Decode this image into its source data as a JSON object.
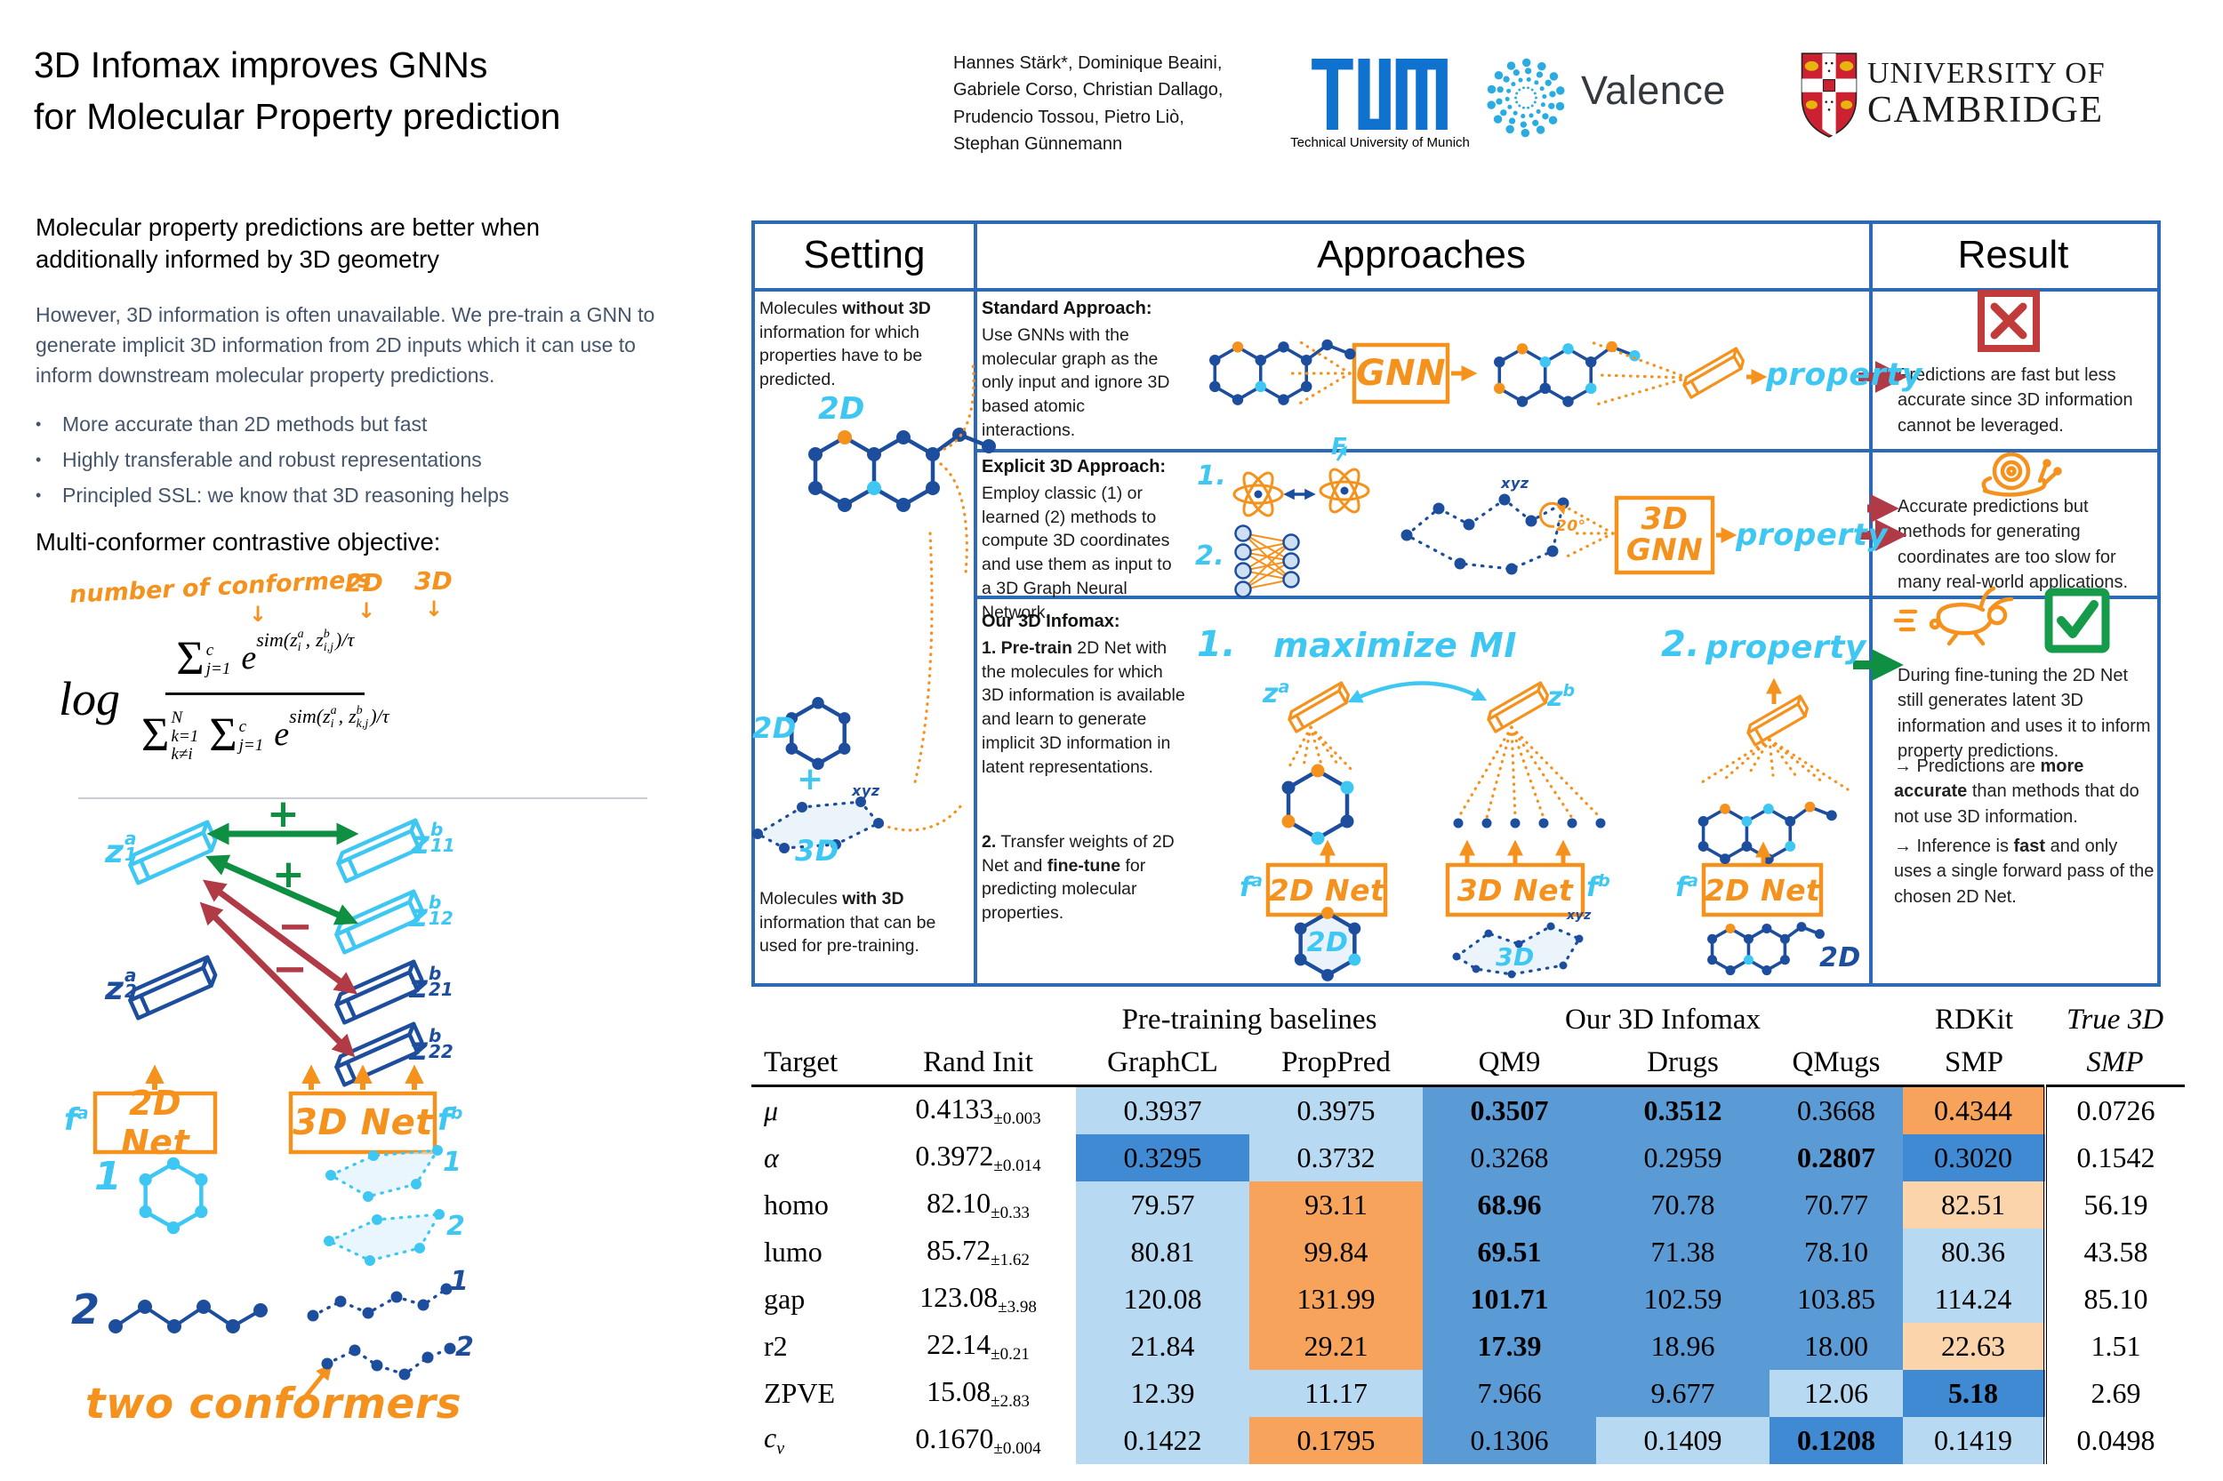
{
  "colors": {
    "panel_border": "#2c6ab8",
    "molecule_ink_blue": "#1d4e9d",
    "hand_cyan": "#3ec7f2",
    "hand_orange": "#f5921e",
    "arrow_green": "#0e8f41",
    "arrow_dark_red": "#b03b46",
    "body_slate": "#44546a",
    "tum_blue": "#0e72ce",
    "valence_blue": "#2aace2",
    "cambridge_red": "#cc2131",
    "cell_light_blue": "#b7d9f2",
    "cell_mid_blue": "#5b9bd5",
    "cell_dark_blue": "#3f8ad2",
    "cell_orange": "#f7a35b",
    "cell_light_orange": "#fbd4ab"
  },
  "header": {
    "title1": "3D Infomax improves GNNs",
    "title2": "for Molecular Property prediction",
    "authors1": "Hannes Stärk*, Dominique Beaini,",
    "authors2": "Gabriele Corso, Christian Dallago,",
    "authors3": "Prudencio Tossou, Pietro Liò,",
    "authors4": "Stephan Günnemann",
    "tum_caption": "Technical University of Munich",
    "valence_label": "Valence",
    "cam1": "UNIVERSITY OF",
    "cam2": "CAMBRIDGE"
  },
  "intro": {
    "heading": "Molecular property predictions are better when additionally informed by 3D geometry",
    "para": "However, 3D information is often unavailable. We pre-train a GNN to generate implicit 3D information from 2D inputs which it can use to inform downstream molecular property predictions.",
    "b1": "More accurate than 2D methods but fast",
    "b2": "Highly transferable and robust representations",
    "b3": "Principled SSL: we know that 3D reasoning helps",
    "objective": "Multi-conformer contrastive objective:"
  },
  "formula": {
    "ann_conformers": "number of conformers",
    "ann_2d": "2D",
    "ann_3d": "3D",
    "down": "↓",
    "log": "log",
    "sigma": "Σ",
    "n_sup": "c",
    "n_sub": "j=1",
    "e": "e",
    "sim": "sim(",
    "z": "z",
    "a": "a",
    "i": "i",
    "comma": ",",
    "b": "b",
    "ij": "i,j",
    "end": ")/τ",
    "d_sup": "N",
    "d_sub1": "k=1",
    "d_sub2": "k≠i",
    "d2_sup": "c",
    "d2_sub": "j=1",
    "kj": "k,j"
  },
  "objective": {
    "z": "z",
    "a": "a",
    "b": "b",
    "f": "f",
    "s1": "1",
    "s2": "2",
    "s11": "11",
    "s12": "12",
    "s21": "21",
    "s22": "22",
    "plus": "+",
    "minus": "−",
    "net2d": "2D Net",
    "net3d": "3D Net",
    "caption": "two conformers"
  },
  "panel": {
    "h_setting": "Setting",
    "h_approaches": "Approaches",
    "h_result": "Result",
    "set_top1": "Molecules ",
    "set_top_b": "without 3D",
    "set_top2": " information for which properties have to be predicted.",
    "set_2d": "2D",
    "set_plus": "+",
    "set_3d": "3D",
    "set_xyz": "xyz",
    "set_bot1": "Molecules ",
    "set_bot_b": "with 3D",
    "set_bot2": " information that can be used for pre-training.",
    "r1_title": "Standard Approach:",
    "r1_body": "Use GNNs with the molecular graph as the only input and ignore 3D based atomic interactions.",
    "r1_gnn": "GNN",
    "r1_property": "property",
    "r2_title": "Explicit 3D Approach:",
    "r2_body": "Employ classic (1) or learned (2) methods to compute 3D coordinates and use them as input to a 3D Graph Neural Network.",
    "r2_n1": "1.",
    "r2_n2": "2.",
    "r2_f": "F",
    "r2_deg": "20°",
    "r2_xyz": "xyz",
    "r2_gnn1": "3D",
    "r2_gnn2": "GNN",
    "r2_property": "property",
    "r3_title": "Our 3D Infomax:",
    "r3_p1b": "1. Pre-train",
    "r3_p1": " 2D Net with the molecules for which 3D information is available and learn to generate implicit 3D information in latent representations.",
    "r3_p2b1": "2.",
    "r3_p2a": " Transfer weights of 2D Net and ",
    "r3_p2b2": "fine-tune",
    "r3_p2c": " for predicting molecular properties.",
    "r3_n1": "1.",
    "r3_maximize": "maximize MI",
    "r3_n2": "2.",
    "r3_property": "property",
    "r3_net2d": "2D Net",
    "r3_net3d": "3D Net",
    "r3_net2d2": "2D Net",
    "r3_2d": "2D",
    "r3_3d": "3D",
    "r3_2d2": "2D",
    "r3_xyz": "xyz",
    "res1": "Predictions are fast but less accurate since 3D information cannot be leveraged.",
    "res2": "Accurate predictions but methods for generating coordinates are too slow for many real-world applications.",
    "res3_p1": "During fine-tuning the 2D Net still generates latent 3D information and uses it to inform property predictions.",
    "res3_p2a": "→ Predictions are ",
    "res3_p2b": "more accurate",
    "res3_p2c": " than methods that do not use 3D information.",
    "res3_p3a": "→ Inference is ",
    "res3_p3b": "fast",
    "res3_p3c": " and only uses a single forward pass of the chosen 2D Net."
  },
  "table": {
    "gh_pretrain": "Pre-training baselines",
    "gh_infomax": "Our 3D Infomax",
    "gh_rdkit": "RDKit",
    "gh_true": "True 3D",
    "cols": [
      "Target",
      "Rand Init",
      "GraphCL",
      "PropPred",
      "QM9",
      "Drugs",
      "QMugs",
      "SMP",
      "SMP"
    ],
    "rows": [
      {
        "t": "μ",
        "em": 1,
        "sub": "",
        "rand": "0.4133",
        "err": "±0.003",
        "cells": [
          {
            "v": "0.3937",
            "c": "lb"
          },
          {
            "v": "0.3975",
            "c": "lb"
          },
          {
            "v": "0.3507",
            "c": "mb",
            "b": 1
          },
          {
            "v": "0.3512",
            "c": "mb",
            "b": 1
          },
          {
            "v": "0.3668",
            "c": "mb"
          },
          {
            "v": "0.4344",
            "c": "or"
          }
        ],
        "true3d": "0.0726"
      },
      {
        "t": "α",
        "em": 1,
        "sub": "",
        "rand": "0.3972",
        "err": "±0.014",
        "cells": [
          {
            "v": "0.3295",
            "c": "db"
          },
          {
            "v": "0.3732",
            "c": "lb"
          },
          {
            "v": "0.3268",
            "c": "mb"
          },
          {
            "v": "0.2959",
            "c": "mb"
          },
          {
            "v": "0.2807",
            "c": "mb",
            "b": 1
          },
          {
            "v": "0.3020",
            "c": "db"
          }
        ],
        "true3d": "0.1542"
      },
      {
        "t": "homo",
        "em": 0,
        "sub": "",
        "rand": "82.10",
        "err": "±0.33",
        "cells": [
          {
            "v": "79.57",
            "c": "lb"
          },
          {
            "v": "93.11",
            "c": "or"
          },
          {
            "v": "68.96",
            "c": "mb",
            "b": 1
          },
          {
            "v": "70.78",
            "c": "mb"
          },
          {
            "v": "70.77",
            "c": "mb"
          },
          {
            "v": "82.51",
            "c": "lo"
          }
        ],
        "true3d": "56.19"
      },
      {
        "t": "lumo",
        "em": 0,
        "sub": "",
        "rand": "85.72",
        "err": "±1.62",
        "cells": [
          {
            "v": "80.81",
            "c": "lb"
          },
          {
            "v": "99.84",
            "c": "or"
          },
          {
            "v": "69.51",
            "c": "mb",
            "b": 1
          },
          {
            "v": "71.38",
            "c": "mb"
          },
          {
            "v": "78.10",
            "c": "mb"
          },
          {
            "v": "80.36",
            "c": "lb"
          }
        ],
        "true3d": "43.58"
      },
      {
        "t": "gap",
        "em": 0,
        "sub": "",
        "rand": "123.08",
        "err": "±3.98",
        "cells": [
          {
            "v": "120.08",
            "c": "lb"
          },
          {
            "v": "131.99",
            "c": "or"
          },
          {
            "v": "101.71",
            "c": "mb",
            "b": 1
          },
          {
            "v": "102.59",
            "c": "mb"
          },
          {
            "v": "103.85",
            "c": "mb"
          },
          {
            "v": "114.24",
            "c": "lb"
          }
        ],
        "true3d": "85.10"
      },
      {
        "t": "r2",
        "em": 0,
        "sub": "",
        "rand": "22.14",
        "err": "±0.21",
        "cells": [
          {
            "v": "21.84",
            "c": "lb"
          },
          {
            "v": "29.21",
            "c": "or"
          },
          {
            "v": "17.39",
            "c": "mb",
            "b": 1
          },
          {
            "v": "18.96",
            "c": "mb"
          },
          {
            "v": "18.00",
            "c": "mb"
          },
          {
            "v": "22.63",
            "c": "lo"
          }
        ],
        "true3d": "1.51"
      },
      {
        "t": "ZPVE",
        "em": 0,
        "sub": "",
        "rand": "15.08",
        "err": "±2.83",
        "cells": [
          {
            "v": "12.39",
            "c": "lb"
          },
          {
            "v": "11.17",
            "c": "lb"
          },
          {
            "v": "7.966",
            "c": "mb"
          },
          {
            "v": "9.677",
            "c": "mb"
          },
          {
            "v": "12.06",
            "c": "lb"
          },
          {
            "v": "5.18",
            "c": "db",
            "b": 1
          }
        ],
        "true3d": "2.69"
      },
      {
        "t": "c",
        "em": 1,
        "sub": "v",
        "rand": "0.1670",
        "err": "±0.004",
        "cells": [
          {
            "v": "0.1422",
            "c": "lb"
          },
          {
            "v": "0.1795",
            "c": "or"
          },
          {
            "v": "0.1306",
            "c": "mb"
          },
          {
            "v": "0.1409",
            "c": "lb"
          },
          {
            "v": "0.1208",
            "c": "db",
            "b": 1
          },
          {
            "v": "0.1419",
            "c": "lb"
          }
        ],
        "true3d": "0.0498"
      }
    ]
  }
}
